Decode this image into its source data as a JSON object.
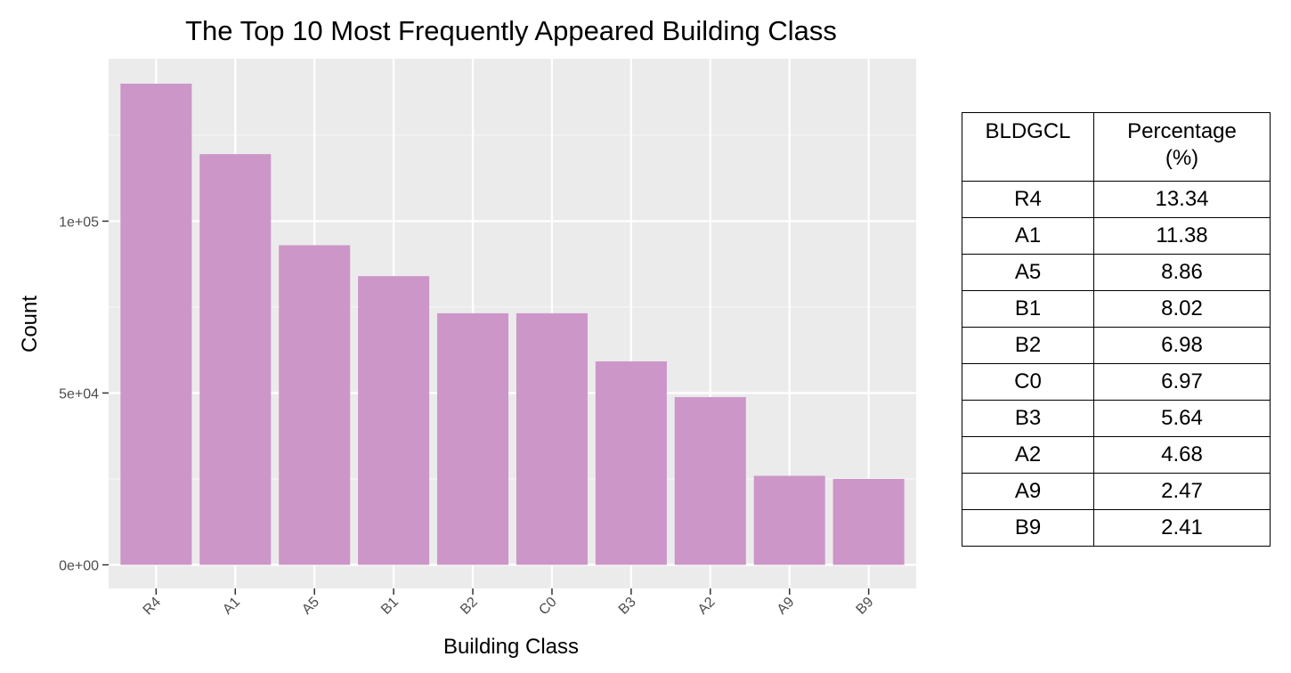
{
  "chart_data": {
    "type": "bar",
    "title": "The Top 10 Most Frequently Appeared Building Class",
    "xlabel": "Building Class",
    "ylabel": "Count",
    "categories": [
      "R4",
      "A1",
      "A5",
      "B1",
      "B2",
      "C0",
      "B3",
      "A2",
      "A9",
      "B9"
    ],
    "values": [
      140000,
      119500,
      93000,
      84000,
      73200,
      73200,
      59200,
      48800,
      25900,
      25000
    ],
    "ylim": [
      0,
      140000
    ],
    "y_ticks": [
      0,
      50000,
      100000
    ],
    "y_tick_labels": [
      "0e+00",
      "5e+04",
      "1e+05"
    ],
    "bar_color": "#cc96c8",
    "panel_color": "#ebebeb",
    "grid": true
  },
  "table": {
    "headers": [
      "BLDGCL",
      "Percentage\n(%)"
    ],
    "rows": [
      [
        "R4",
        "13.34"
      ],
      [
        "A1",
        "11.38"
      ],
      [
        "A5",
        "8.86"
      ],
      [
        "B1",
        "8.02"
      ],
      [
        "B2",
        "6.98"
      ],
      [
        "C0",
        "6.97"
      ],
      [
        "B3",
        "5.64"
      ],
      [
        "A2",
        "4.68"
      ],
      [
        "A9",
        "2.47"
      ],
      [
        "B9",
        "2.41"
      ]
    ]
  }
}
